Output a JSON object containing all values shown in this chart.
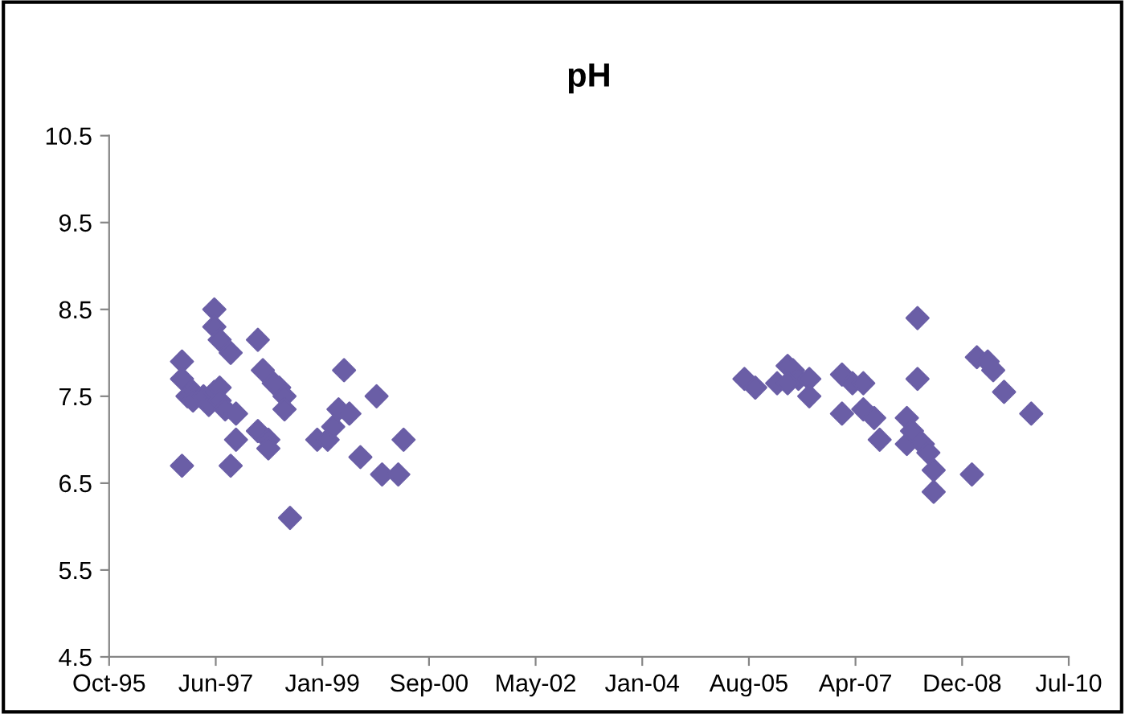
{
  "chart_data": {
    "type": "scatter",
    "title": "pH",
    "series": [
      {
        "color": "#6a5ea6",
        "x": [
          "1996-12",
          "1996-12",
          "1997-01",
          "1996-12",
          "1997-02",
          "1997-02",
          "1997-04",
          "1997-05",
          "1997-06",
          "1997-07",
          "1997-07",
          "1997-06",
          "1997-06",
          "1997-07",
          "1997-09",
          "1997-08",
          "1997-10",
          "1997-10",
          "1997-09",
          "1998-02",
          "1998-03",
          "1998-05",
          "1998-06",
          "1998-07",
          "1998-07",
          "1998-02",
          "1998-04",
          "1998-04",
          "1998-08",
          "1999-01",
          "1999-03",
          "1999-04",
          "1999-05",
          "1999-07",
          "1999-06",
          "1999-12",
          "1999-09",
          "2000-01",
          "2000-04",
          "2000-05",
          "2005-08",
          "2005-10",
          "2006-02",
          "2006-04",
          "2006-05",
          "2006-06",
          "2006-08",
          "2006-08",
          "2006-04",
          "2007-02",
          "2007-04",
          "2007-06",
          "2007-02",
          "2007-06",
          "2007-08",
          "2007-09",
          "2008-04",
          "2008-04",
          "2008-02",
          "2008-02",
          "2008-03",
          "2008-05",
          "2008-06",
          "2008-07",
          "2008-07",
          "2009-02",
          "2009-03",
          "2009-05",
          "2009-06",
          "2009-08",
          "2010-01"
        ],
        "values": [
          7.9,
          7.7,
          7.5,
          6.7,
          7.55,
          7.45,
          7.5,
          7.4,
          7.55,
          7.6,
          7.45,
          8.5,
          8.3,
          8.15,
          8.0,
          7.35,
          7.3,
          7.0,
          6.7,
          8.15,
          7.8,
          7.65,
          7.6,
          7.5,
          7.35,
          7.1,
          7.0,
          6.9,
          6.1,
          7.0,
          7.0,
          7.15,
          7.35,
          7.3,
          7.8,
          7.5,
          6.8,
          6.6,
          6.6,
          7.0,
          7.7,
          7.6,
          7.65,
          7.85,
          7.8,
          7.7,
          7.7,
          7.5,
          7.65,
          7.75,
          7.65,
          7.65,
          7.3,
          7.35,
          7.25,
          7.0,
          8.4,
          7.7,
          7.25,
          6.95,
          7.1,
          6.95,
          6.85,
          6.65,
          6.4,
          6.6,
          7.95,
          7.9,
          7.8,
          7.55,
          7.3
        ]
      }
    ],
    "marker": "diamond",
    "xlim": [
      "1995-10-18",
      "2010-07-31"
    ],
    "xticks": [
      {
        "value": "1995-10-18",
        "label": "Oct-95"
      },
      {
        "value": "1997-06-09",
        "label": "Jun-97"
      },
      {
        "value": "1999-01-30",
        "label": "Jan-99"
      },
      {
        "value": "2000-09-21",
        "label": "Sep-00"
      },
      {
        "value": "2002-05-14",
        "label": "May-02"
      },
      {
        "value": "2004-01-04",
        "label": "Jan-04"
      },
      {
        "value": "2005-08-26",
        "label": "Aug-05"
      },
      {
        "value": "2007-04-18",
        "label": "Apr-07"
      },
      {
        "value": "2008-12-08",
        "label": "Dec-08"
      },
      {
        "value": "2010-07-31",
        "label": "Jul-10"
      }
    ],
    "ylim": [
      4.5,
      10.5
    ],
    "yticks": [
      4.5,
      5.5,
      6.5,
      7.5,
      8.5,
      9.5,
      10.5
    ],
    "grid": false,
    "legend": false
  }
}
